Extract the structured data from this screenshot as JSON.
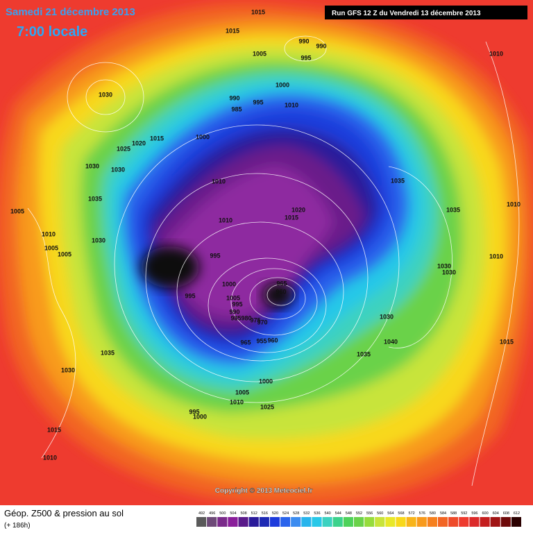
{
  "header": {
    "date": "Samedi 21 décembre 2013",
    "time": "7:00 locale",
    "run": "Run GFS 12 Z du Vendredi 13 décembre 2013"
  },
  "copyright": "Copyright © 2013 Meteociel.fr",
  "footer": {
    "title": "Géop. Z500 & pression au sol",
    "lead": "(+ 186h)"
  },
  "isobar_labels": [
    1015,
    1015,
    990,
    990,
    1005,
    995,
    1010,
    1030,
    990,
    995,
    985,
    1000,
    1010,
    1015,
    1020,
    1025,
    1000,
    1030,
    1030,
    1010,
    1035,
    1035,
    1005,
    1020,
    1015,
    1010,
    1035,
    1010,
    1010,
    1030,
    1005,
    1005,
    995,
    1010,
    1030,
    1030,
    1000,
    965,
    960,
    995,
    1005,
    995,
    990,
    985,
    980,
    975,
    970,
    1030,
    965,
    955,
    960,
    1040,
    1015,
    1035,
    1035,
    1030,
    1000,
    1005,
    1010,
    1025,
    995,
    1000,
    1015,
    1010
  ],
  "scale": {
    "ticks": [
      492,
      496,
      500,
      504,
      508,
      512,
      516,
      520,
      524,
      528,
      532,
      536,
      540,
      544,
      548,
      552,
      556,
      560,
      564,
      568,
      572,
      576,
      580,
      584,
      588,
      592,
      596,
      600,
      604,
      608,
      612
    ],
    "colors": [
      "#5a5a5a",
      "#6e4a78",
      "#7a2a8a",
      "#8a1e9a",
      "#5a1a8a",
      "#2a1a9a",
      "#1e2ab4",
      "#1e3cdc",
      "#2a64ec",
      "#3c8cf0",
      "#28b4ec",
      "#28c8e8",
      "#3cd2c0",
      "#3cd28c",
      "#4ed25a",
      "#6ad24a",
      "#96dc3c",
      "#c8e43a",
      "#e8e828",
      "#f8d81a",
      "#f8b41a",
      "#f89a1c",
      "#f6801e",
      "#f26524",
      "#ee4a2a",
      "#ee3b2f",
      "#dc2a2a",
      "#c41e1e",
      "#a01414",
      "#6e0a0a",
      "#2a0000"
    ]
  }
}
